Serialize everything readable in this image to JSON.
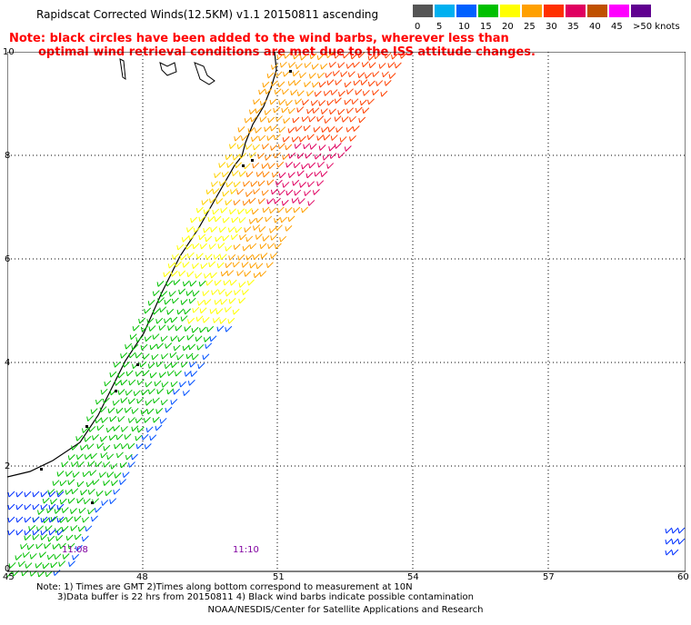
{
  "title": "Rapidscat Corrected Winds(12.5KM) v1.1 20150811 ascending",
  "note": {
    "line1": "Note: black circles have been added to the wind barbs, wherever less than",
    "line2": "optimal wind retrieval conditions are met due to the ISS attitude changes."
  },
  "scale": {
    "labels": [
      "0",
      "5",
      "10",
      "15",
      "20",
      "25",
      "30",
      "35",
      "40",
      "45",
      ">50 knots"
    ],
    "colors": [
      "#555555",
      "#00b0f0",
      "#0060ff",
      "#00c000",
      "#ffff00",
      "#ffa000",
      "#ff3000",
      "#e00060",
      "#c05000",
      "#ff00ff",
      "#600090"
    ]
  },
  "axes": {
    "x_ticks": [
      "45",
      "48",
      "51",
      "54",
      "57",
      "60"
    ],
    "y_ticks": [
      "0",
      "2",
      "4",
      "6",
      "8",
      "10"
    ]
  },
  "times": [
    "11:08",
    "11:10"
  ],
  "footer": {
    "line1": "Note: 1) Times are GMT 2)Times along bottom correspond to measurement at 10N",
    "line2": "3)Data buffer is 22 hrs from 20150811 4) Black wind barbs indicate possible contamination"
  },
  "credit": "NOAA/NESDIS/Center for Satellite Applications and Research"
}
